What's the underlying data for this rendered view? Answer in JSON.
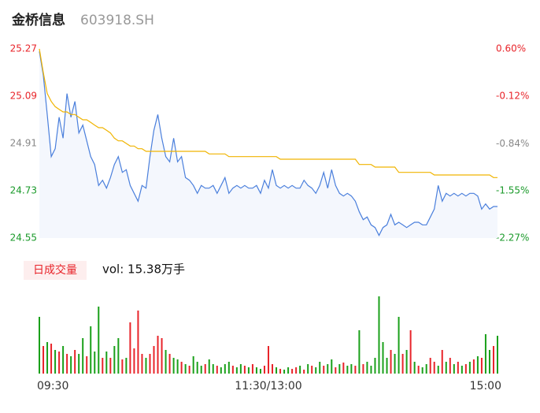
{
  "header": {
    "name": "金桥信息",
    "code": "603918.SH"
  },
  "chart_data": [
    {
      "type": "line",
      "xlim": [
        0,
        116
      ],
      "xticks": [
        {
          "value": 0,
          "label": "09:30"
        },
        {
          "value": 58,
          "label": "11:30/13:00"
        },
        {
          "value": 116,
          "label": "15:00"
        }
      ],
      "ylim": [
        24.55,
        25.27
      ],
      "yticks": [
        25.27,
        25.09,
        24.91,
        24.73,
        24.55
      ],
      "ytick_colors": [
        "#e8242a",
        "#e8242a",
        "#888888",
        "#1a9a2a",
        "#1a9a2a"
      ],
      "y2lim": [
        -2.27,
        0.6
      ],
      "y2ticks": [
        {
          "value": 0.6,
          "label": "0.60%"
        },
        {
          "value": -0.12,
          "label": "-0.12%"
        },
        {
          "value": -0.84,
          "label": "-0.84%"
        },
        {
          "value": -1.55,
          "label": "-1.55%"
        },
        {
          "value": -2.27,
          "label": "-2.27%"
        }
      ],
      "y2tick_colors": [
        "#e8242a",
        "#e8242a",
        "#888888",
        "#1a9a2a",
        "#1a9a2a"
      ],
      "grid": false,
      "area_fill": "#f4f7fd",
      "series": [
        {
          "color": "#4a7fdc",
          "values": [
            25.26,
            25.17,
            25.02,
            24.86,
            24.89,
            25.01,
            24.93,
            25.1,
            25.01,
            25.07,
            24.95,
            24.98,
            24.92,
            24.86,
            24.83,
            24.75,
            24.77,
            24.74,
            24.78,
            24.83,
            24.86,
            24.8,
            24.81,
            24.75,
            24.72,
            24.69,
            24.75,
            24.74,
            24.86,
            24.96,
            25.02,
            24.93,
            24.86,
            24.84,
            24.93,
            24.84,
            24.86,
            24.78,
            24.77,
            24.75,
            24.72,
            24.75,
            24.74,
            24.74,
            24.75,
            24.72,
            24.75,
            24.78,
            24.72,
            24.74,
            24.75,
            24.74,
            24.75,
            24.74,
            24.74,
            24.75,
            24.72,
            24.77,
            24.74,
            24.81,
            24.75,
            24.74,
            24.75,
            24.74,
            24.75,
            24.74,
            24.74,
            24.77,
            24.75,
            24.74,
            24.72,
            24.75,
            24.8,
            24.74,
            24.81,
            24.75,
            24.72,
            24.71,
            24.72,
            24.71,
            24.69,
            24.65,
            24.62,
            24.63,
            24.6,
            24.59,
            24.56,
            24.59,
            24.6,
            24.64,
            24.6,
            24.61,
            24.6,
            24.59,
            24.6,
            24.61,
            24.61,
            24.6,
            24.6,
            24.63,
            24.66,
            24.75,
            24.69,
            24.72,
            24.71,
            24.72,
            24.71,
            24.72,
            24.71,
            24.72,
            24.72,
            24.71,
            24.66,
            24.68,
            24.66,
            24.67,
            24.67
          ]
        },
        {
          "color": "#f0b400",
          "values": [
            25.27,
            25.18,
            25.1,
            25.07,
            25.05,
            25.04,
            25.03,
            25.03,
            25.02,
            25.02,
            25.01,
            25.0,
            25.0,
            24.99,
            24.98,
            24.97,
            24.97,
            24.96,
            24.95,
            24.93,
            24.92,
            24.92,
            24.91,
            24.9,
            24.9,
            24.89,
            24.89,
            24.88,
            24.88,
            24.88,
            24.88,
            24.88,
            24.88,
            24.88,
            24.88,
            24.88,
            24.88,
            24.88,
            24.88,
            24.88,
            24.88,
            24.88,
            24.88,
            24.87,
            24.87,
            24.87,
            24.87,
            24.87,
            24.86,
            24.86,
            24.86,
            24.86,
            24.86,
            24.86,
            24.86,
            24.86,
            24.86,
            24.86,
            24.86,
            24.86,
            24.86,
            24.85,
            24.85,
            24.85,
            24.85,
            24.85,
            24.85,
            24.85,
            24.85,
            24.85,
            24.85,
            24.85,
            24.85,
            24.85,
            24.85,
            24.85,
            24.85,
            24.85,
            24.85,
            24.85,
            24.85,
            24.83,
            24.83,
            24.83,
            24.83,
            24.82,
            24.82,
            24.82,
            24.82,
            24.82,
            24.82,
            24.8,
            24.8,
            24.8,
            24.8,
            24.8,
            24.8,
            24.8,
            24.8,
            24.8,
            24.79,
            24.79,
            24.79,
            24.79,
            24.79,
            24.79,
            24.79,
            24.79,
            24.79,
            24.79,
            24.79,
            24.79,
            24.79,
            24.79,
            24.79,
            24.78,
            24.78
          ]
        }
      ]
    },
    {
      "type": "bar",
      "label": "日成交量",
      "summary": "vol: 15.38万手",
      "values": [
        72,
        35,
        40,
        38,
        30,
        28,
        35,
        25,
        22,
        30,
        25,
        45,
        22,
        60,
        28,
        85,
        20,
        28,
        20,
        35,
        45,
        18,
        20,
        65,
        32,
        80,
        25,
        20,
        25,
        35,
        48,
        45,
        30,
        25,
        20,
        18,
        15,
        12,
        10,
        22,
        15,
        10,
        12,
        18,
        12,
        10,
        8,
        12,
        15,
        10,
        8,
        12,
        10,
        8,
        12,
        8,
        6,
        10,
        35,
        12,
        8,
        6,
        5,
        8,
        6,
        8,
        10,
        5,
        12,
        10,
        8,
        15,
        10,
        12,
        18,
        8,
        12,
        14,
        10,
        12,
        10,
        55,
        12,
        15,
        10,
        20,
        98,
        40,
        20,
        30,
        25,
        72,
        25,
        30,
        55,
        15,
        10,
        8,
        12,
        20,
        15,
        10,
        30,
        15,
        20,
        12,
        15,
        10,
        12,
        15,
        18,
        22,
        20,
        50,
        30,
        35,
        48
      ],
      "colors": [
        "#1aa01a",
        "#e8242a",
        "#1aa01a",
        "#e8242a",
        "#1aa01a",
        "#e8242a",
        "#1aa01a",
        "#e8242a",
        "#1aa01a",
        "#e8242a",
        "#1aa01a",
        "#1aa01a",
        "#e8242a",
        "#1aa01a",
        "#1aa01a",
        "#1aa01a",
        "#e8242a",
        "#1aa01a",
        "#e8242a",
        "#1aa01a",
        "#1aa01a",
        "#e8242a",
        "#1aa01a",
        "#e8242a",
        "#e8242a",
        "#e8242a",
        "#e8242a",
        "#1aa01a",
        "#e8242a",
        "#e8242a",
        "#e8242a",
        "#e8242a",
        "#1aa01a",
        "#e8242a",
        "#1aa01a",
        "#1aa01a",
        "#e8242a",
        "#1aa01a",
        "#e8242a",
        "#1aa01a",
        "#1aa01a",
        "#1aa01a",
        "#e8242a",
        "#1aa01a",
        "#1aa01a",
        "#e8242a",
        "#1aa01a",
        "#1aa01a",
        "#1aa01a",
        "#e8242a",
        "#1aa01a",
        "#1aa01a",
        "#e8242a",
        "#1aa01a",
        "#e8242a",
        "#1aa01a",
        "#1aa01a",
        "#e8242a",
        "#e8242a",
        "#e8242a",
        "#1aa01a",
        "#e8242a",
        "#1aa01a",
        "#1aa01a",
        "#e8242a",
        "#e8242a",
        "#1aa01a",
        "#e8242a",
        "#1aa01a",
        "#e8242a",
        "#1aa01a",
        "#1aa01a",
        "#e8242a",
        "#1aa01a",
        "#1aa01a",
        "#e8242a",
        "#1aa01a",
        "#e8242a",
        "#1aa01a",
        "#1aa01a",
        "#e8242a",
        "#1aa01a",
        "#e8242a",
        "#1aa01a",
        "#1aa01a",
        "#1aa01a",
        "#1aa01a",
        "#1aa01a",
        "#1aa01a",
        "#e8242a",
        "#1aa01a",
        "#1aa01a",
        "#e8242a",
        "#1aa01a",
        "#e8242a",
        "#1aa01a",
        "#e8242a",
        "#1aa01a",
        "#1aa01a",
        "#e8242a",
        "#e8242a",
        "#1aa01a",
        "#e8242a",
        "#1aa01a",
        "#e8242a",
        "#1aa01a",
        "#e8242a",
        "#1aa01a",
        "#e8242a",
        "#1aa01a",
        "#e8242a",
        "#1aa01a",
        "#e8242a",
        "#1aa01a",
        "#1aa01a",
        "#e8242a",
        "#1aa01a"
      ]
    }
  ]
}
